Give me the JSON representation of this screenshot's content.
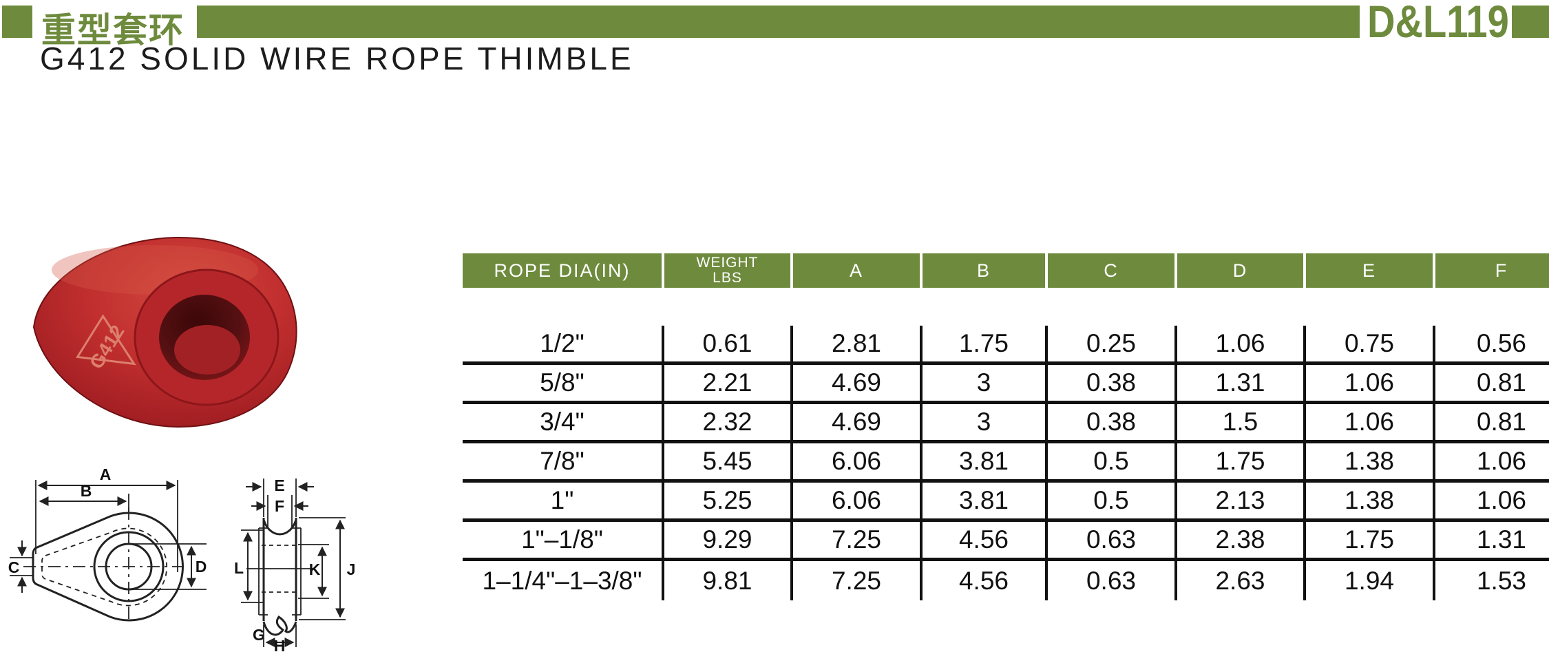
{
  "header": {
    "cn_title": "重型套环",
    "page_code": "D&L119",
    "accent_color": "#6e8b3d"
  },
  "title": "G412 SOLID WIRE ROPE THIMBLE",
  "product": {
    "stamp": "G412",
    "body_color": "#bf2b2d"
  },
  "table": {
    "header_cells": [
      {
        "key": "rope-dia",
        "label": "ROPE DIA(IN)"
      },
      {
        "key": "weight",
        "label": "WEIGHT",
        "label2": "LBS"
      },
      {
        "key": "a",
        "label": "A"
      },
      {
        "key": "b",
        "label": "B"
      },
      {
        "key": "c",
        "label": "C"
      },
      {
        "key": "d",
        "label": "D"
      },
      {
        "key": "e",
        "label": "E"
      },
      {
        "key": "f",
        "label": "F"
      }
    ],
    "rows": [
      [
        "1/2\"",
        "0.61",
        "2.81",
        "1.75",
        "0.25",
        "1.06",
        "0.75",
        "0.56"
      ],
      [
        "5/8\"",
        "2.21",
        "4.69",
        "3",
        "0.38",
        "1.31",
        "1.06",
        "0.81"
      ],
      [
        "3/4\"",
        "2.32",
        "4.69",
        "3",
        "0.38",
        "1.5",
        "1.06",
        "0.81"
      ],
      [
        "7/8\"",
        "5.45",
        "6.06",
        "3.81",
        "0.5",
        "1.75",
        "1.38",
        "1.06"
      ],
      [
        "1\"",
        "5.25",
        "6.06",
        "3.81",
        "0.5",
        "2.13",
        "1.38",
        "1.06"
      ],
      [
        "1\"–1/8\"",
        "9.29",
        "7.25",
        "4.56",
        "0.63",
        "2.38",
        "1.75",
        "1.31"
      ],
      [
        "1–1/4\"–1–3/8\"",
        "9.81",
        "7.25",
        "4.56",
        "0.63",
        "2.63",
        "1.94",
        "1.53"
      ]
    ]
  },
  "diagram": {
    "front_labels": {
      "a": "A",
      "b": "B",
      "c": "C",
      "d": "D"
    },
    "side_labels": {
      "e": "E",
      "f": "F",
      "l": "L",
      "k": "K",
      "j": "J",
      "g": "G",
      "h": "H"
    }
  }
}
